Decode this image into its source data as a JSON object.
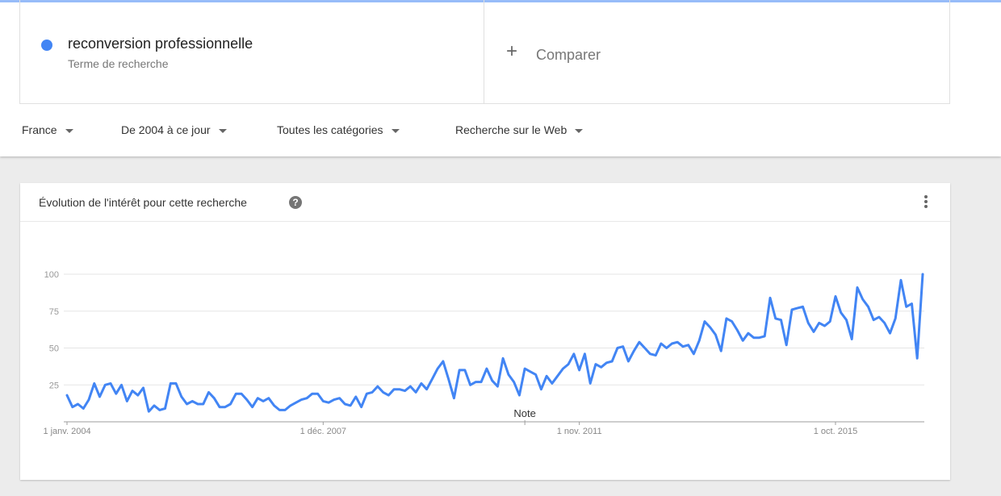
{
  "search_term": {
    "name": "reconversion professionnelle",
    "type_label": "Terme de recherche",
    "color": "#4285f4"
  },
  "compare": {
    "label": "Comparer",
    "icon": "plus-icon"
  },
  "filters": {
    "region": "France",
    "period": "De 2004 à ce jour",
    "category": "Toutes les catégories",
    "search_type": "Recherche sur le Web"
  },
  "card": {
    "title": "Évolution de l'intérêt pour cette recherche",
    "help_icon": "question-mark-icon",
    "more_icon": "more-vert-icon"
  },
  "chart_data": {
    "type": "line",
    "series": [
      {
        "color": "#4285f4",
        "values": [
          18,
          10,
          12,
          9,
          15,
          26,
          17,
          25,
          26,
          19,
          25,
          14,
          21,
          18,
          23,
          7,
          11,
          8,
          9,
          26,
          26,
          17,
          12,
          14,
          12,
          12,
          20,
          16,
          10,
          10,
          12,
          19,
          19,
          15,
          10,
          16,
          14,
          16,
          11,
          8,
          8,
          11,
          13,
          15,
          16,
          19,
          19,
          14,
          13,
          15,
          16,
          12,
          11,
          17,
          10,
          19,
          20,
          24,
          20,
          18,
          22,
          22,
          21,
          24,
          20,
          26,
          22,
          29,
          36,
          41,
          29,
          16,
          35,
          35,
          25,
          27,
          27,
          36,
          28,
          24,
          43,
          32,
          27,
          18,
          36,
          34,
          32,
          22,
          31,
          26,
          31,
          36,
          39,
          46,
          35,
          46,
          26,
          39,
          37,
          40,
          41,
          50,
          51,
          41,
          48,
          54,
          50,
          46,
          45,
          53,
          50,
          53,
          54,
          51,
          52,
          46,
          55,
          68,
          64,
          59,
          48,
          70,
          68,
          62,
          55,
          60,
          57,
          57,
          58,
          84,
          70,
          69,
          52,
          76,
          77,
          78,
          67,
          61,
          67,
          65,
          68,
          85,
          74,
          69,
          56,
          91,
          83,
          78,
          69,
          71,
          67,
          60,
          70,
          96,
          78,
          80,
          43,
          100
        ]
      }
    ],
    "y_ticks": [
      "100",
      "75",
      "50",
      "25"
    ],
    "y_tick_values": [
      100,
      75,
      50,
      25
    ],
    "ylim": [
      0,
      100
    ],
    "x_tick_labels": [
      "1 janv. 2004",
      "1 déc. 2007",
      "1 nov. 2011",
      "1 oct. 2015"
    ],
    "x_tick_indices": [
      0,
      47,
      94,
      141
    ],
    "annotation": {
      "label": "Note",
      "index": 84
    },
    "grid": true
  }
}
